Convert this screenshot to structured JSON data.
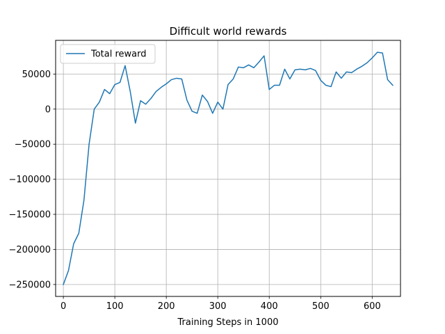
{
  "chart_data": {
    "type": "line",
    "title": "Difficult world rewards",
    "xlabel": "Training Steps in 1000",
    "ylabel": "",
    "xlim": [
      -15,
      655
    ],
    "ylim": [
      -267000,
      98000
    ],
    "xticks": [
      0,
      100,
      200,
      300,
      400,
      500,
      600
    ],
    "yticks": [
      -250000,
      -200000,
      -150000,
      -100000,
      -50000,
      0,
      50000
    ],
    "grid": true,
    "legend_position": "top-left",
    "series": [
      {
        "name": "Total reward",
        "color": "#1f77b4",
        "x": [
          0,
          10,
          20,
          30,
          40,
          50,
          60,
          70,
          80,
          90,
          100,
          110,
          120,
          130,
          140,
          150,
          160,
          170,
          180,
          190,
          200,
          210,
          220,
          230,
          240,
          250,
          260,
          270,
          280,
          290,
          300,
          310,
          320,
          330,
          340,
          350,
          360,
          370,
          380,
          390,
          400,
          410,
          420,
          430,
          440,
          450,
          460,
          470,
          480,
          490,
          500,
          510,
          520,
          530,
          540,
          550,
          560,
          570,
          580,
          590,
          600,
          610,
          620,
          630,
          640
        ],
        "y": [
          -250000,
          -230000,
          -192000,
          -177000,
          -130000,
          -50000,
          0,
          10000,
          28000,
          22000,
          35000,
          38000,
          62000,
          25000,
          -20000,
          12000,
          7000,
          15000,
          25000,
          31000,
          36000,
          42000,
          44000,
          43000,
          13000,
          -3000,
          -6000,
          20000,
          11000,
          -6000,
          10000,
          0,
          35000,
          43000,
          60000,
          59000,
          63000,
          59000,
          67000,
          76000,
          28000,
          34000,
          34000,
          57000,
          43000,
          56000,
          57000,
          56000,
          58000,
          55000,
          41000,
          34000,
          32000,
          53000,
          44000,
          53000,
          52000,
          57000,
          61000,
          66000,
          73000,
          81000,
          80000,
          42000,
          34000
        ]
      }
    ]
  }
}
